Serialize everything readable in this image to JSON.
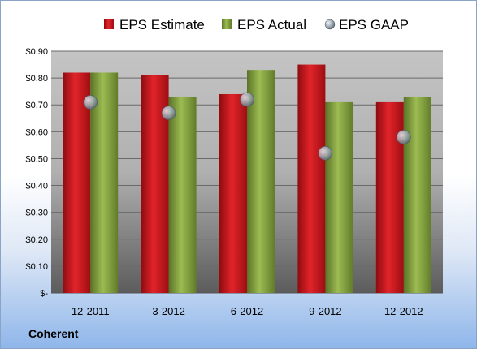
{
  "company": "Coherent",
  "chart_data": {
    "type": "bar",
    "categories": [
      "12-2011",
      "3-2012",
      "6-2012",
      "9-2012",
      "12-2012"
    ],
    "series": [
      {
        "name": "EPS Estimate",
        "type": "bar",
        "color": "#c0141a",
        "values": [
          0.82,
          0.81,
          0.74,
          0.85,
          0.71
        ]
      },
      {
        "name": "EPS Actual",
        "type": "bar",
        "color": "#7d9a3a",
        "values": [
          0.82,
          0.73,
          0.83,
          0.71,
          0.73
        ]
      },
      {
        "name": "EPS GAAP",
        "type": "scatter",
        "color": "#a9b4bf",
        "values": [
          0.71,
          0.67,
          0.72,
          0.52,
          0.58
        ]
      }
    ],
    "yticks": [
      "$-",
      "$0.10",
      "$0.20",
      "$0.30",
      "$0.40",
      "$0.50",
      "$0.60",
      "$0.70",
      "$0.80",
      "$0.90"
    ],
    "ylim": [
      0,
      0.9
    ],
    "grid": true,
    "legend": "top"
  }
}
